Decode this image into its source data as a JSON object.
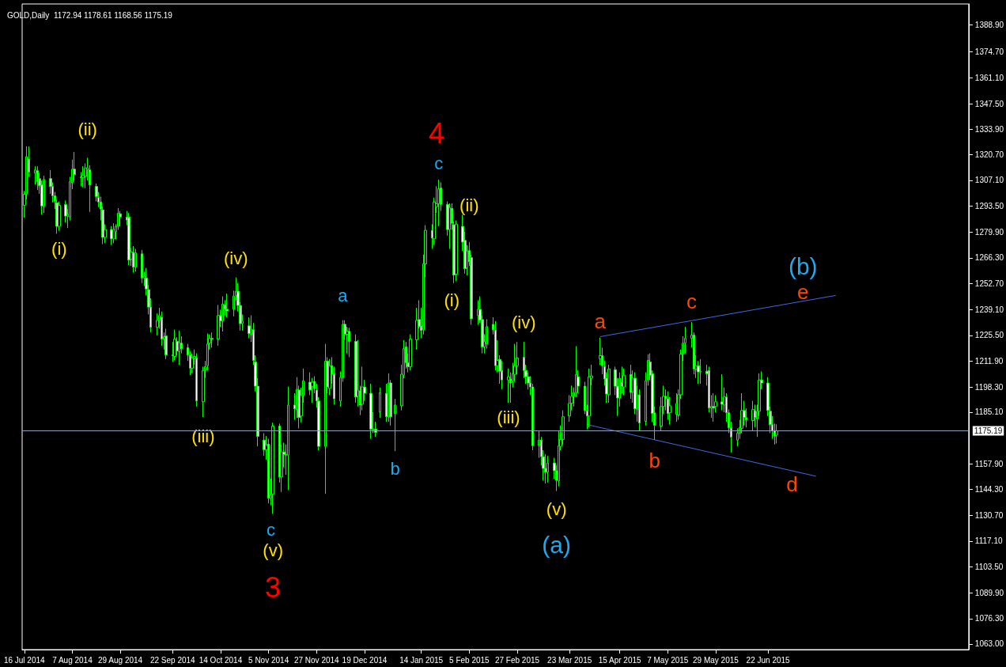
{
  "chart_data": {
    "type": "candlestick",
    "title": "GOLD,Daily  1172.94 1178.61 1168.56 1175.19",
    "xlim": [
      "2014-07-15",
      "2015-09-22"
    ],
    "ylim": [
      1060,
      1400
    ],
    "xticks": [
      {
        "value": "2014-07-16",
        "label": "16 Jul 2014"
      },
      {
        "value": "2014-08-07",
        "label": "7 Aug 2014"
      },
      {
        "value": "2014-08-29",
        "label": "29 Aug 2014"
      },
      {
        "value": "2014-09-22",
        "label": "22 Sep 2014"
      },
      {
        "value": "2014-10-14",
        "label": "14 Oct 2014"
      },
      {
        "value": "2014-11-05",
        "label": "5 Nov 2014"
      },
      {
        "value": "2014-11-27",
        "label": "27 Nov 2014"
      },
      {
        "value": "2014-12-19",
        "label": "19 Dec 2014"
      },
      {
        "value": "2015-01-14",
        "label": "14 Jan 2015"
      },
      {
        "value": "2015-02-05",
        "label": "5 Feb 2015"
      },
      {
        "value": "2015-02-27",
        "label": "27 Feb 2015"
      },
      {
        "value": "2015-03-23",
        "label": "23 Mar 2015"
      },
      {
        "value": "2015-04-15",
        "label": "15 Apr 2015"
      },
      {
        "value": "2015-05-07",
        "label": "7 May 2015"
      },
      {
        "value": "2015-05-29",
        "label": "29 May 2015"
      },
      {
        "value": "2015-06-22",
        "label": "22 Jun 2015"
      }
    ],
    "yticks": [
      {
        "value": 1063,
        "label": "1063.00"
      },
      {
        "value": 1076.3,
        "label": "1076.30"
      },
      {
        "value": 1089.9,
        "label": "1089.90"
      },
      {
        "value": 1103.5,
        "label": "1103.50"
      },
      {
        "value": 1117.1,
        "label": "1117.10"
      },
      {
        "value": 1130.7,
        "label": "1130.70"
      },
      {
        "value": 1144.3,
        "label": "1144.30"
      },
      {
        "value": 1157.9,
        "label": "1157.90"
      },
      {
        "value": 1185.1,
        "label": "1185.10"
      },
      {
        "value": 1198.3,
        "label": "1198.30"
      },
      {
        "value": 1211.9,
        "label": "1211.90"
      },
      {
        "value": 1225.5,
        "label": "1225.50"
      },
      {
        "value": 1239.1,
        "label": "1239.10"
      },
      {
        "value": 1252.7,
        "label": "1252.70"
      },
      {
        "value": 1266.3,
        "label": "1266.30"
      },
      {
        "value": 1279.9,
        "label": "1279.90"
      },
      {
        "value": 1293.5,
        "label": "1293.50"
      },
      {
        "value": 1307.1,
        "label": "1307.10"
      },
      {
        "value": 1320.7,
        "label": "1320.70"
      },
      {
        "value": 1333.9,
        "label": "1333.90"
      },
      {
        "value": 1347.5,
        "label": "1347.50"
      },
      {
        "value": 1361.1,
        "label": "1361.10"
      },
      {
        "value": 1374.7,
        "label": "1374.70"
      },
      {
        "value": 1388.9,
        "label": "1388.90"
      }
    ],
    "ref_lines": [
      {
        "axis": "y",
        "value": 1175.19,
        "label": "1175.19",
        "color": "#8fa0b8"
      }
    ],
    "series": [
      {
        "type": "candlestick",
        "color": "#00ff00",
        "x": [
          "2014-07-16",
          "2014-07-17",
          "2014-07-18",
          "2014-07-21",
          "2014-07-22",
          "2014-07-23",
          "2014-07-24",
          "2014-07-25",
          "2014-07-28",
          "2014-07-29",
          "2014-07-30",
          "2014-07-31",
          "2014-08-01",
          "2014-08-04",
          "2014-08-05",
          "2014-08-06",
          "2014-08-07",
          "2014-08-08",
          "2014-08-11",
          "2014-08-12",
          "2014-08-13",
          "2014-08-14",
          "2014-08-15",
          "2014-08-18",
          "2014-08-19",
          "2014-08-20",
          "2014-08-21",
          "2014-08-22",
          "2014-08-25",
          "2014-08-26",
          "2014-08-27",
          "2014-08-28",
          "2014-08-29",
          "2014-09-01",
          "2014-09-02",
          "2014-09-03",
          "2014-09-04",
          "2014-09-05",
          "2014-09-08",
          "2014-09-09",
          "2014-09-10",
          "2014-09-11",
          "2014-09-12",
          "2014-09-15",
          "2014-09-16",
          "2014-09-17",
          "2014-09-18",
          "2014-09-19",
          "2014-09-22",
          "2014-09-23",
          "2014-09-24",
          "2014-09-25",
          "2014-09-26",
          "2014-09-29",
          "2014-09-30",
          "2014-10-01",
          "2014-10-02",
          "2014-10-03",
          "2014-10-06",
          "2014-10-07",
          "2014-10-08",
          "2014-10-09",
          "2014-10-10",
          "2014-10-13",
          "2014-10-14",
          "2014-10-15",
          "2014-10-16",
          "2014-10-17",
          "2014-10-20",
          "2014-10-21",
          "2014-10-22",
          "2014-10-23",
          "2014-10-24",
          "2014-10-27",
          "2014-10-28",
          "2014-10-29",
          "2014-10-30",
          "2014-10-31",
          "2014-11-03",
          "2014-11-04",
          "2014-11-05",
          "2014-11-06",
          "2014-11-07",
          "2014-11-10",
          "2014-11-11",
          "2014-11-12",
          "2014-11-13",
          "2014-11-14",
          "2014-11-17",
          "2014-11-18",
          "2014-11-19",
          "2014-11-20",
          "2014-11-21",
          "2014-11-24",
          "2014-11-25",
          "2014-11-26",
          "2014-11-27",
          "2014-11-28",
          "2014-12-01",
          "2014-12-02",
          "2014-12-03",
          "2014-12-04",
          "2014-12-05",
          "2014-12-08",
          "2014-12-09",
          "2014-12-10",
          "2014-12-11",
          "2014-12-12",
          "2014-12-15",
          "2014-12-16",
          "2014-12-17",
          "2014-12-18",
          "2014-12-19",
          "2014-12-22",
          "2014-12-23",
          "2014-12-24",
          "2014-12-26",
          "2014-12-29",
          "2014-12-30",
          "2014-12-31",
          "2015-01-02",
          "2015-01-05",
          "2015-01-06",
          "2015-01-07",
          "2015-01-08",
          "2015-01-09",
          "2015-01-12",
          "2015-01-13",
          "2015-01-14",
          "2015-01-15",
          "2015-01-16",
          "2015-01-19",
          "2015-01-20",
          "2015-01-21",
          "2015-01-22",
          "2015-01-23",
          "2015-01-26",
          "2015-01-27",
          "2015-01-28",
          "2015-01-29",
          "2015-01-30",
          "2015-02-02",
          "2015-02-03",
          "2015-02-04",
          "2015-02-05",
          "2015-02-06",
          "2015-02-09",
          "2015-02-10",
          "2015-02-11",
          "2015-02-12",
          "2015-02-13",
          "2015-02-16",
          "2015-02-17",
          "2015-02-18",
          "2015-02-19",
          "2015-02-20",
          "2015-02-23",
          "2015-02-24",
          "2015-02-25",
          "2015-02-26",
          "2015-02-27",
          "2015-03-02",
          "2015-03-03",
          "2015-03-04",
          "2015-03-05",
          "2015-03-06",
          "2015-03-09",
          "2015-03-10",
          "2015-03-11",
          "2015-03-12",
          "2015-03-13",
          "2015-03-16",
          "2015-03-17",
          "2015-03-18",
          "2015-03-19",
          "2015-03-20",
          "2015-03-23",
          "2015-03-24",
          "2015-03-25",
          "2015-03-26",
          "2015-03-27",
          "2015-03-30",
          "2015-03-31",
          "2015-04-01",
          "2015-04-02",
          "2015-04-06",
          "2015-04-07",
          "2015-04-08",
          "2015-04-09",
          "2015-04-10",
          "2015-04-13",
          "2015-04-14",
          "2015-04-15",
          "2015-04-16",
          "2015-04-17",
          "2015-04-20",
          "2015-04-21",
          "2015-04-22",
          "2015-04-23",
          "2015-04-24",
          "2015-04-27",
          "2015-04-28",
          "2015-04-29",
          "2015-04-30",
          "2015-05-01",
          "2015-05-04",
          "2015-05-05",
          "2015-05-06",
          "2015-05-07",
          "2015-05-08",
          "2015-05-11",
          "2015-05-12",
          "2015-05-13",
          "2015-05-14",
          "2015-05-15",
          "2015-05-18",
          "2015-05-19",
          "2015-05-20",
          "2015-05-21",
          "2015-05-22",
          "2015-05-25",
          "2015-05-26",
          "2015-05-27",
          "2015-05-28",
          "2015-05-29",
          "2015-06-01",
          "2015-06-02",
          "2015-06-03",
          "2015-06-04",
          "2015-06-05",
          "2015-06-08",
          "2015-06-09",
          "2015-06-10",
          "2015-06-11",
          "2015-06-12",
          "2015-06-15",
          "2015-06-16",
          "2015-06-17",
          "2015-06-18",
          "2015-06-19",
          "2015-06-22",
          "2015-06-23",
          "2015-06-24",
          "2015-06-25",
          "2015-06-26"
        ],
        "ohlc": [
          [
            1294.0,
            1301.5,
            1287.5,
            1299.8
          ],
          [
            1299.8,
            1325.0,
            1297.0,
            1319.6
          ],
          [
            1318.4,
            1325.0,
            1309.0,
            1311.4
          ],
          [
            1310.9,
            1314.5,
            1305.0,
            1312.6
          ],
          [
            1312.2,
            1314.5,
            1302.0,
            1306.4
          ],
          [
            1308.0,
            1311.0,
            1300.0,
            1304.3
          ],
          [
            1304.8,
            1307.0,
            1289.0,
            1293.6
          ],
          [
            1293.6,
            1309.5,
            1290.0,
            1307.6
          ],
          [
            1308.0,
            1312.5,
            1300.0,
            1303.9
          ],
          [
            1303.9,
            1306.0,
            1295.5,
            1299.0
          ],
          [
            1299.0,
            1301.0,
            1292.0,
            1296.1
          ],
          [
            1295.3,
            1297.0,
            1279.0,
            1282.9
          ],
          [
            1282.9,
            1296.0,
            1280.5,
            1294.0
          ],
          [
            1294.4,
            1296.5,
            1285.0,
            1288.3
          ],
          [
            1288.3,
            1292.0,
            1282.0,
            1289.1
          ],
          [
            1287.8,
            1309.0,
            1286.0,
            1306.4
          ],
          [
            1306.0,
            1318.0,
            1302.5,
            1313.0
          ],
          [
            1313.0,
            1322.0,
            1307.0,
            1310.1
          ],
          [
            1308.9,
            1311.5,
            1304.0,
            1308.5
          ],
          [
            1308.5,
            1314.5,
            1303.5,
            1309.7
          ],
          [
            1309.3,
            1316.0,
            1303.0,
            1313.4
          ],
          [
            1312.6,
            1319.0,
            1307.0,
            1313.8
          ],
          [
            1312.6,
            1315.0,
            1290.5,
            1304.7
          ],
          [
            1303.9,
            1305.5,
            1296.0,
            1298.6
          ],
          [
            1298.1,
            1301.0,
            1293.0,
            1295.7
          ],
          [
            1295.7,
            1298.5,
            1286.0,
            1292.0
          ],
          [
            1291.6,
            1293.5,
            1273.5,
            1277.1
          ],
          [
            1277.1,
            1284.0,
            1274.0,
            1281.2
          ],
          [
            1281.2,
            1283.0,
            1273.0,
            1276.3
          ],
          [
            1276.3,
            1284.5,
            1274.0,
            1281.2
          ],
          [
            1280.0,
            1284.0,
            1276.0,
            1282.9
          ],
          [
            1282.9,
            1292.5,
            1281.0,
            1289.9
          ],
          [
            1289.5,
            1291.0,
            1283.0,
            1287.8
          ],
          [
            1287.8,
            1291.0,
            1283.5,
            1286.2
          ],
          [
            1287.8,
            1290.0,
            1262.5,
            1265.1
          ],
          [
            1265.6,
            1271.5,
            1262.0,
            1269.3
          ],
          [
            1269.3,
            1272.5,
            1258.5,
            1261.4
          ],
          [
            1261.4,
            1271.0,
            1259.0,
            1268.9
          ],
          [
            1268.4,
            1270.5,
            1253.0,
            1255.7
          ],
          [
            1255.7,
            1259.0,
            1251.5,
            1256.5
          ],
          [
            1255.7,
            1261.0,
            1246.5,
            1249.9
          ],
          [
            1249.5,
            1252.0,
            1236.5,
            1240.4
          ],
          [
            1240.4,
            1245.0,
            1227.0,
            1229.7
          ],
          [
            1229.7,
            1237.0,
            1225.5,
            1233.4
          ],
          [
            1233.4,
            1240.0,
            1229.0,
            1235.9
          ],
          [
            1235.0,
            1238.0,
            1220.0,
            1223.5
          ],
          [
            1223.5,
            1227.0,
            1218.0,
            1224.7
          ],
          [
            1225.1,
            1229.0,
            1213.0,
            1215.2
          ],
          [
            1215.2,
            1222.0,
            1211.5,
            1214.8
          ],
          [
            1214.4,
            1228.5,
            1212.5,
            1223.5
          ],
          [
            1222.3,
            1224.5,
            1215.0,
            1217.3
          ],
          [
            1216.9,
            1228.0,
            1210.0,
            1221.8
          ],
          [
            1221.4,
            1225.0,
            1216.0,
            1218.5
          ],
          [
            1219.0,
            1221.0,
            1212.0,
            1215.2
          ],
          [
            1215.2,
            1217.0,
            1204.5,
            1208.2
          ],
          [
            1208.2,
            1216.0,
            1205.5,
            1213.6
          ],
          [
            1213.6,
            1218.0,
            1210.0,
            1214.4
          ],
          [
            1213.6,
            1216.0,
            1188.0,
            1190.9
          ],
          [
            1190.5,
            1209.0,
            1182.5,
            1207.0
          ],
          [
            1207.0,
            1212.0,
            1203.0,
            1209.0
          ],
          [
            1209.5,
            1226.5,
            1207.0,
            1221.0
          ],
          [
            1221.4,
            1226.0,
            1218.0,
            1223.9
          ],
          [
            1223.9,
            1227.0,
            1219.0,
            1223.5
          ],
          [
            1223.5,
            1241.5,
            1220.0,
            1235.9
          ],
          [
            1235.9,
            1239.0,
            1230.0,
            1233.0
          ],
          [
            1233.0,
            1246.0,
            1227.5,
            1242.0
          ],
          [
            1241.6,
            1244.0,
            1236.0,
            1239.2
          ],
          [
            1239.2,
            1247.5,
            1235.0,
            1238.3
          ],
          [
            1239.2,
            1249.0,
            1235.5,
            1246.2
          ],
          [
            1246.6,
            1256.0,
            1244.0,
            1248.7
          ],
          [
            1248.7,
            1253.0,
            1238.0,
            1241.2
          ],
          [
            1241.2,
            1243.0,
            1228.0,
            1231.7
          ],
          [
            1231.7,
            1236.5,
            1228.0,
            1233.0
          ],
          [
            1230.5,
            1235.0,
            1224.0,
            1226.4
          ],
          [
            1226.0,
            1236.0,
            1222.0,
            1228.8
          ],
          [
            1228.4,
            1232.0,
            1210.0,
            1212.3
          ],
          [
            1211.5,
            1215.0,
            1196.0,
            1198.7
          ],
          [
            1198.7,
            1203.0,
            1167.0,
            1172.3
          ],
          [
            1170.3,
            1174.0,
            1162.0,
            1165.3
          ],
          [
            1165.3,
            1172.5,
            1160.0,
            1167.8
          ],
          [
            1168.2,
            1171.0,
            1137.0,
            1139.7
          ],
          [
            1139.7,
            1150.0,
            1136.0,
            1141.4
          ],
          [
            1141.8,
            1179.5,
            1131.5,
            1177.7
          ],
          [
            1177.7,
            1179.0,
            1148.0,
            1150.9
          ],
          [
            1150.9,
            1168.0,
            1143.0,
            1164.1
          ],
          [
            1164.1,
            1169.0,
            1156.0,
            1162.8
          ],
          [
            1162.8,
            1168.0,
            1152.0,
            1162.4
          ],
          [
            1162.4,
            1198.5,
            1144.0,
            1188.8
          ],
          [
            1188.8,
            1195.0,
            1181.0,
            1186.8
          ],
          [
            1186.4,
            1203.5,
            1182.0,
            1197.1
          ],
          [
            1196.7,
            1199.0,
            1176.5,
            1182.2
          ],
          [
            1183.0,
            1198.0,
            1179.5,
            1193.8
          ],
          [
            1193.8,
            1208.0,
            1190.0,
            1201.6
          ],
          [
            1200.8,
            1206.0,
            1194.0,
            1196.7
          ],
          [
            1198.7,
            1203.0,
            1190.0,
            1200.8
          ],
          [
            1201.2,
            1204.0,
            1195.0,
            1197.5
          ],
          [
            1196.7,
            1200.0,
            1187.5,
            1190.9
          ],
          [
            1190.9,
            1193.0,
            1165.0,
            1167.0
          ],
          [
            1167.0,
            1221.0,
            1142.0,
            1211.9
          ],
          [
            1211.9,
            1214.0,
            1195.0,
            1198.3
          ],
          [
            1197.5,
            1213.0,
            1194.0,
            1209.5
          ],
          [
            1209.5,
            1214.0,
            1200.0,
            1204.9
          ],
          [
            1205.3,
            1209.0,
            1189.0,
            1192.1
          ],
          [
            1190.9,
            1206.5,
            1188.0,
            1203.3
          ],
          [
            1203.3,
            1233.5,
            1201.0,
            1231.3
          ],
          [
            1231.3,
            1233.5,
            1223.0,
            1226.0
          ],
          [
            1226.0,
            1230.0,
            1216.0,
            1227.6
          ],
          [
            1227.6,
            1229.5,
            1214.0,
            1222.3
          ],
          [
            1222.3,
            1226.0,
            1190.0,
            1193.0
          ],
          [
            1193.4,
            1223.0,
            1188.0,
            1196.7
          ],
          [
            1196.3,
            1199.0,
            1183.5,
            1188.8
          ],
          [
            1189.2,
            1209.0,
            1186.0,
            1198.3
          ],
          [
            1198.3,
            1202.0,
            1191.0,
            1195.0
          ],
          [
            1195.0,
            1200.0,
            1171.0,
            1176.1
          ],
          [
            1176.1,
            1185.0,
            1174.0,
            1176.1
          ],
          [
            1176.1,
            1180.0,
            1172.0,
            1174.4
          ],
          [
            1185.1,
            1198.0,
            1182.0,
            1195.4
          ],
          [
            1195.0,
            1200.0,
            1180.0,
            1182.6
          ],
          [
            1182.6,
            1205.5,
            1180.0,
            1200.4
          ],
          [
            1200.4,
            1202.0,
            1178.0,
            1182.6
          ],
          [
            1184.3,
            1192.0,
            1164.5,
            1188.8
          ],
          [
            1188.4,
            1210.0,
            1186.0,
            1205.0
          ],
          [
            1204.5,
            1223.0,
            1203.0,
            1218.5
          ],
          [
            1219.4,
            1222.0,
            1208.0,
            1211.1
          ],
          [
            1211.1,
            1216.0,
            1206.0,
            1209.0
          ],
          [
            1209.0,
            1226.0,
            1207.0,
            1223.5
          ],
          [
            1223.1,
            1240.0,
            1218.0,
            1233.4
          ],
          [
            1233.8,
            1244.0,
            1229.0,
            1230.1
          ],
          [
            1230.5,
            1240.0,
            1224.0,
            1228.0
          ],
          [
            1228.4,
            1268.0,
            1226.0,
            1263.1
          ],
          [
            1263.1,
            1283.5,
            1256.0,
            1280.8
          ],
          [
            1280.8,
            1284.0,
            1271.0,
            1276.7
          ],
          [
            1276.3,
            1298.0,
            1273.0,
            1295.7
          ],
          [
            1293.2,
            1304.0,
            1290.0,
            1294.8
          ],
          [
            1294.8,
            1307.5,
            1283.0,
            1302.7
          ],
          [
            1303.1,
            1306.0,
            1291.0,
            1294.4
          ],
          [
            1294.4,
            1296.0,
            1278.0,
            1281.2
          ],
          [
            1281.2,
            1295.0,
            1271.0,
            1292.8
          ],
          [
            1292.4,
            1295.0,
            1281.0,
            1284.5
          ],
          [
            1283.7,
            1285.5,
            1253.0,
            1257.3
          ],
          [
            1257.7,
            1286.0,
            1254.0,
            1284.1
          ],
          [
            1282.9,
            1289.0,
            1270.0,
            1274.6
          ],
          [
            1275.5,
            1280.0,
            1258.0,
            1260.6
          ],
          [
            1261.0,
            1273.0,
            1257.0,
            1269.7
          ],
          [
            1270.1,
            1274.5,
            1262.0,
            1264.3
          ],
          [
            1266.4,
            1268.0,
            1231.0,
            1234.2
          ],
          [
            1235.9,
            1244.0,
            1231.0,
            1239.2
          ],
          [
            1239.2,
            1246.0,
            1232.0,
            1233.4
          ],
          [
            1233.8,
            1236.0,
            1216.0,
            1219.4
          ],
          [
            1219.4,
            1226.0,
            1216.0,
            1222.3
          ],
          [
            1221.0,
            1234.0,
            1218.5,
            1230.1
          ],
          [
            1231.3,
            1235.0,
            1226.0,
            1228.4
          ],
          [
            1228.4,
            1233.0,
            1207.0,
            1209.5
          ],
          [
            1209.5,
            1223.0,
            1206.0,
            1212.3
          ],
          [
            1212.8,
            1215.0,
            1200.0,
            1206.6
          ],
          [
            1207.0,
            1212.0,
            1197.0,
            1202.0
          ],
          [
            1202.0,
            1208.0,
            1190.0,
            1203.7
          ],
          [
            1202.5,
            1206.0,
            1190.0,
            1200.4
          ],
          [
            1201.6,
            1211.0,
            1198.0,
            1205.3
          ],
          [
            1204.9,
            1221.0,
            1201.0,
            1209.5
          ],
          [
            1209.5,
            1222.0,
            1205.0,
            1213.6
          ],
          [
            1214.0,
            1222.0,
            1203.0,
            1207.0
          ],
          [
            1207.0,
            1210.0,
            1200.0,
            1203.7
          ],
          [
            1203.7,
            1206.0,
            1197.0,
            1200.4
          ],
          [
            1200.4,
            1204.0,
            1194.0,
            1198.3
          ],
          [
            1198.3,
            1200.0,
            1165.0,
            1167.4
          ],
          [
            1167.4,
            1175.0,
            1161.0,
            1170.3
          ],
          [
            1170.3,
            1172.0,
            1157.0,
            1161.6
          ],
          [
            1161.6,
            1165.0,
            1149.0,
            1155.4
          ],
          [
            1155.4,
            1163.0,
            1147.5,
            1153.4
          ],
          [
            1153.4,
            1162.0,
            1148.0,
            1158.3
          ],
          [
            1158.3,
            1161.0,
            1150.0,
            1154.2
          ],
          [
            1154.2,
            1157.0,
            1143.5,
            1149.2
          ],
          [
            1148.8,
            1175.5,
            1146.0,
            1167.4
          ],
          [
            1167.0,
            1178.0,
            1165.0,
            1170.7
          ],
          [
            1170.7,
            1186.0,
            1168.0,
            1182.6
          ],
          [
            1183.0,
            1194.0,
            1180.0,
            1189.7
          ],
          [
            1189.7,
            1199.0,
            1186.0,
            1193.4
          ],
          [
            1193.4,
            1198.0,
            1188.0,
            1195.4
          ],
          [
            1195.4,
            1219.8,
            1193.0,
            1204.9
          ],
          [
            1203.7,
            1207.0,
            1195.0,
            1198.7
          ],
          [
            1198.7,
            1201.0,
            1184.0,
            1185.9
          ],
          [
            1185.9,
            1189.0,
            1176.0,
            1183.0
          ],
          [
            1183.0,
            1208.0,
            1177.0,
            1203.7
          ],
          [
            1202.9,
            1210.0,
            1199.0,
            1204.1
          ],
          [
            1213.2,
            1224.3,
            1210.0,
            1214.8
          ],
          [
            1214.8,
            1219.0,
            1205.0,
            1209.5
          ],
          [
            1209.1,
            1212.0,
            1199.0,
            1202.5
          ],
          [
            1202.9,
            1206.0,
            1190.0,
            1194.6
          ],
          [
            1194.2,
            1210.0,
            1190.0,
            1207.8
          ],
          [
            1207.4,
            1209.0,
            1194.0,
            1198.7
          ],
          [
            1198.7,
            1203.0,
            1183.0,
            1192.5
          ],
          [
            1192.5,
            1206.0,
            1188.0,
            1202.9
          ],
          [
            1200.8,
            1209.0,
            1195.0,
            1198.7
          ],
          [
            1198.3,
            1208.0,
            1194.0,
            1204.5
          ],
          [
            1204.9,
            1210.0,
            1192.0,
            1195.4
          ],
          [
            1195.8,
            1207.0,
            1190.0,
            1202.9
          ],
          [
            1202.9,
            1206.0,
            1184.0,
            1186.8
          ],
          [
            1186.8,
            1199.0,
            1180.0,
            1194.2
          ],
          [
            1194.2,
            1197.0,
            1175.0,
            1179.3
          ],
          [
            1180.2,
            1206.0,
            1178.0,
            1201.6
          ],
          [
            1202.0,
            1215.5,
            1199.0,
            1212.3
          ],
          [
            1211.5,
            1216.0,
            1202.0,
            1204.5
          ],
          [
            1205.3,
            1207.0,
            1180.0,
            1184.3
          ],
          [
            1184.7,
            1188.0,
            1170.5,
            1178.1
          ],
          [
            1177.7,
            1193.0,
            1175.0,
            1188.0
          ],
          [
            1188.0,
            1199.0,
            1184.0,
            1193.4
          ],
          [
            1193.4,
            1197.0,
            1186.0,
            1192.1
          ],
          [
            1192.1,
            1196.0,
            1181.0,
            1184.3
          ],
          [
            1184.7,
            1193.0,
            1178.5,
            1188.4
          ],
          [
            1183.9,
            1195.0,
            1180.0,
            1189.7
          ],
          [
            1183.5,
            1197.0,
            1181.0,
            1194.2
          ],
          [
            1194.2,
            1218.0,
            1192.0,
            1215.6
          ],
          [
            1215.6,
            1225.0,
            1212.0,
            1221.4
          ],
          [
            1221.4,
            1230.0,
            1216.0,
            1223.9
          ],
          [
            1223.9,
            1232.5,
            1219.0,
            1225.6
          ],
          [
            1225.6,
            1227.0,
            1205.0,
            1207.8
          ],
          [
            1207.8,
            1215.0,
            1203.0,
            1209.5
          ],
          [
            1209.5,
            1212.0,
            1200.0,
            1206.2
          ],
          [
            1206.2,
            1213.0,
            1200.0,
            1206.6
          ],
          [
            1206.6,
            1210.0,
            1199.0,
            1205.3
          ],
          [
            1207.0,
            1209.0,
            1185.0,
            1187.2
          ],
          [
            1187.2,
            1194.0,
            1182.0,
            1188.0
          ],
          [
            1188.0,
            1195.0,
            1180.0,
            1187.2
          ],
          [
            1188.0,
            1194.0,
            1185.0,
            1190.5
          ],
          [
            1190.5,
            1205.0,
            1186.0,
            1189.2
          ],
          [
            1188.8,
            1198.0,
            1185.0,
            1193.0
          ],
          [
            1193.0,
            1195.0,
            1180.0,
            1184.7
          ],
          [
            1184.7,
            1186.5,
            1174.0,
            1176.9
          ],
          [
            1176.9,
            1180.0,
            1163.7,
            1171.9
          ],
          [
            1170.3,
            1176.5,
            1167.0,
            1174.0
          ],
          [
            1174.0,
            1181.0,
            1171.0,
            1176.9
          ],
          [
            1176.5,
            1195.0,
            1174.0,
            1185.9
          ],
          [
            1185.9,
            1191.0,
            1178.0,
            1182.2
          ],
          [
            1182.2,
            1187.0,
            1177.0,
            1181.0
          ],
          [
            1180.6,
            1191.0,
            1175.0,
            1186.4
          ],
          [
            1185.9,
            1189.0,
            1177.0,
            1182.2
          ],
          [
            1181.4,
            1189.0,
            1172.0,
            1185.5
          ],
          [
            1185.5,
            1205.5,
            1183.0,
            1202.0
          ],
          [
            1202.0,
            1206.5,
            1197.0,
            1200.4
          ],
          [
            1200.4,
            1203.5,
            1183.0,
            1185.9
          ],
          [
            1185.5,
            1188.0,
            1174.0,
            1178.5
          ],
          [
            1178.5,
            1183.0,
            1171.0,
            1175.2
          ],
          [
            1175.2,
            1179.0,
            1168.0,
            1172.4
          ],
          [
            1172.94,
            1178.61,
            1168.56,
            1175.19
          ]
        ]
      },
      {
        "type": "line",
        "color": "#4169e1",
        "x": [
          "2015-04-06",
          "2015-07-23"
        ],
        "values": [
          1224.8,
          1246.5
        ]
      },
      {
        "type": "line",
        "color": "#4169e1",
        "x": [
          "2015-03-31",
          "2015-07-14"
        ],
        "values": [
          1178.5,
          1151.3
        ]
      }
    ],
    "annotations": [
      "(ii)",
      "(i)",
      "(iv)",
      "(iii)",
      "c",
      "(v)",
      "3",
      "a",
      "b",
      "4",
      "c",
      "(ii)",
      "(i)",
      "(iv)",
      "(iii)",
      "(v)",
      "(a)",
      "a",
      "b",
      "c",
      "(b)",
      "e",
      "d"
    ]
  }
}
